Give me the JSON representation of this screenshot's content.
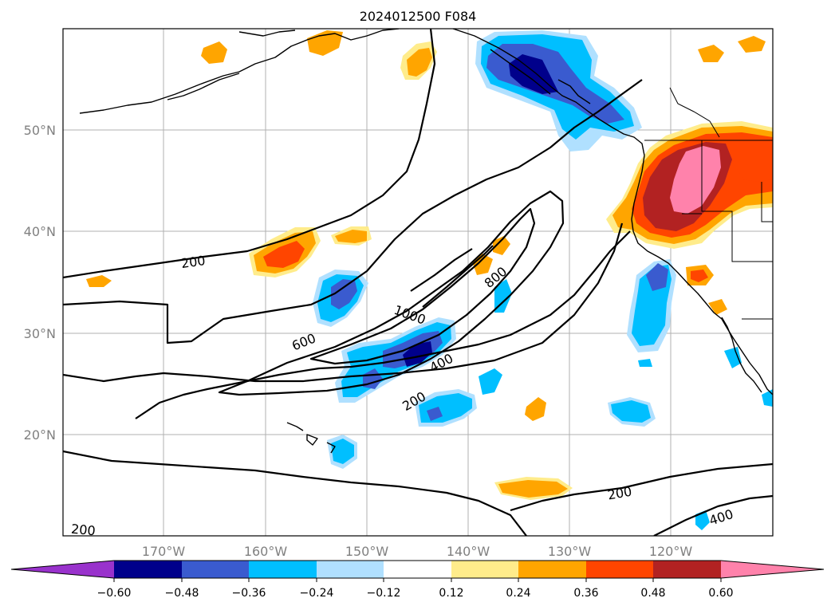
{
  "title": "2024012500 F084",
  "axes": {
    "lon_ticks": [
      "170°W",
      "160°W",
      "150°W",
      "140°W",
      "130°W",
      "120°W"
    ],
    "lat_ticks": [
      "50°N",
      "40°N",
      "30°N",
      "20°N"
    ]
  },
  "colorbar": {
    "ticks": [
      "−0.60",
      "−0.48",
      "−0.36",
      "−0.24",
      "−0.12",
      "0.12",
      "0.24",
      "0.36",
      "0.48",
      "0.60"
    ],
    "colors": {
      "lt_neg_060": "#9932cc",
      "neg_060_048": "#00008b",
      "neg_048_036": "#3a5bcf",
      "neg_036_024": "#00bfff",
      "neg_024_012": "#b0e0ff",
      "neutral": "#ffffff",
      "pos_012_024": "#ffec8b",
      "pos_024_036": "#ffa500",
      "pos_036_048": "#ff4500",
      "pos_048_060": "#b22222",
      "gt_060": "#ff82ab"
    }
  },
  "contour_labels": [
    "200",
    "600",
    "1000",
    "800",
    "400",
    "200",
    "200",
    "400",
    "200"
  ]
}
